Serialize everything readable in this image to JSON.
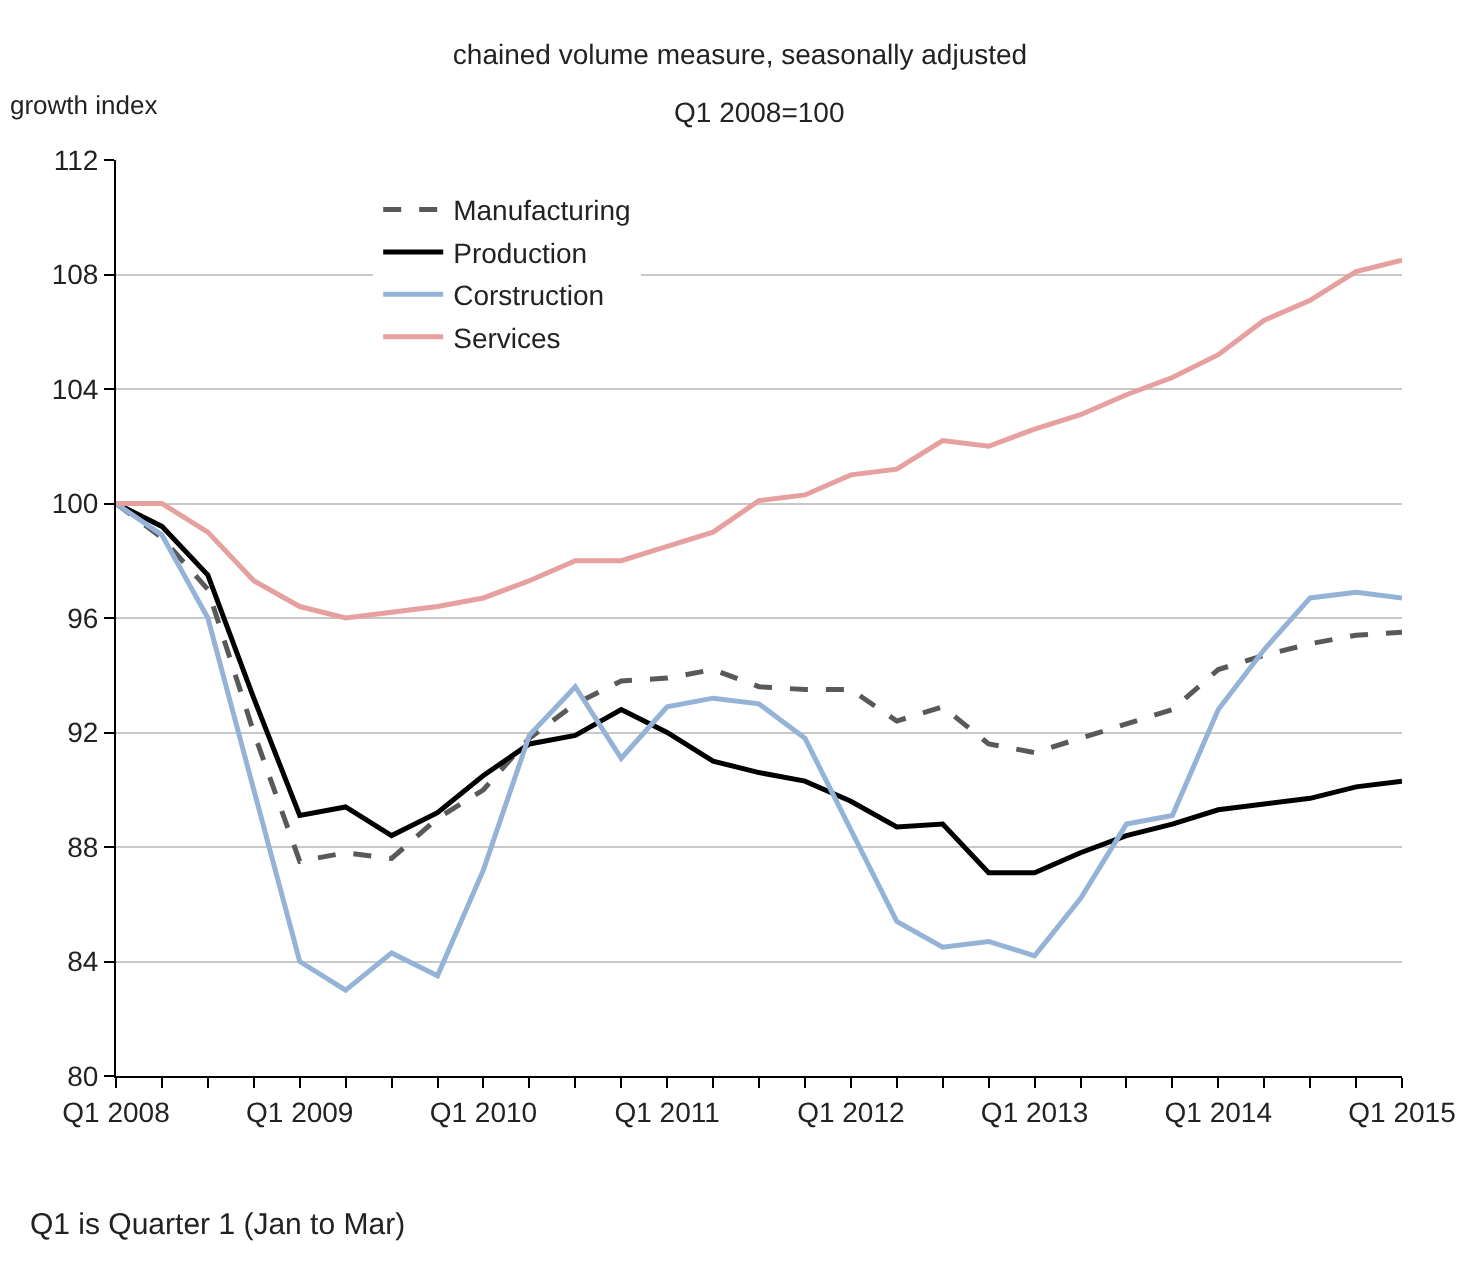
{
  "chart_data": {
    "type": "line",
    "title": "chained volume measure, seasonally adjusted",
    "subtitle": "Q1 2008=100",
    "ylabel": "growth index",
    "categories": [
      "Q1 2008",
      null,
      null,
      null,
      "Q1 2009",
      null,
      null,
      null,
      "Q1 2010",
      null,
      null,
      null,
      "Q1 2011",
      null,
      null,
      null,
      "Q1 2012",
      null,
      null,
      null,
      "Q1 2013",
      null,
      null,
      null,
      "Q1 2014",
      null,
      null,
      null,
      "Q1 2015"
    ],
    "series": [
      {
        "name": "Manufacturing",
        "color": "#595959",
        "line_style": "dashed",
        "values": [
          100,
          98.8,
          97,
          92,
          87.5,
          87.8,
          87.6,
          89,
          90,
          91.8,
          93,
          93.8,
          93.9,
          94.2,
          93.6,
          93.5,
          93.5,
          92.4,
          92.9,
          91.6,
          91.3,
          91.8,
          92.3,
          92.8,
          94.2,
          94.7,
          95.1,
          95.4,
          95.5
        ]
      },
      {
        "name": "Production",
        "color": "#000000",
        "line_style": "solid",
        "values": [
          100,
          99.2,
          97.5,
          93.2,
          89.1,
          89.4,
          88.4,
          89.2,
          90.5,
          91.6,
          91.9,
          92.8,
          92,
          91,
          90.6,
          90.3,
          89.6,
          88.7,
          88.8,
          87.1,
          87.1,
          87.8,
          88.4,
          88.8,
          89.3,
          89.5,
          89.7,
          90.1,
          90.3
        ]
      },
      {
        "name": "Corstruction",
        "color": "#95b3d7",
        "line_style": "solid",
        "values": [
          100,
          98.9,
          96,
          90,
          84,
          83,
          84.3,
          83.5,
          87.2,
          91.9,
          93.6,
          91.1,
          92.9,
          93.2,
          93,
          91.8,
          88.6,
          85.4,
          84.5,
          84.7,
          84.2,
          86.2,
          88.8,
          89.1,
          92.8,
          94.9,
          96.7,
          96.9,
          96.7
        ]
      },
      {
        "name": "Services",
        "color": "#e6a0a0",
        "line_style": "solid",
        "values": [
          100,
          100,
          99,
          97.3,
          96.4,
          96,
          96.2,
          96.4,
          96.7,
          97.3,
          98,
          98,
          98.5,
          99,
          100.1,
          100.3,
          101,
          101.2,
          102.2,
          102,
          102.6,
          103.1,
          103.8,
          104.4,
          105.2,
          106.4,
          107.1,
          108.1,
          108.5
        ]
      }
    ],
    "ylim": [
      80,
      112
    ],
    "yticks": [
      80,
      84,
      88,
      92,
      96,
      100,
      104,
      108,
      112
    ],
    "grid": "y",
    "legend": "top left",
    "annotations": [
      "Q1 is Quarter 1 (Jan to Mar)"
    ]
  }
}
